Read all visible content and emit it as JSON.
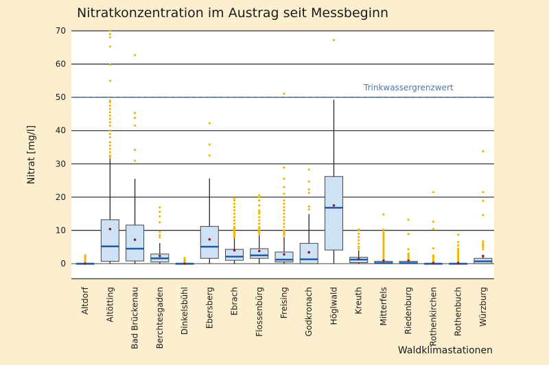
{
  "chart_data": {
    "type": "box",
    "title": "Nitratkonzentration im Austrag seit Messbeginn",
    "xlabel": "Waldklimastationen",
    "ylabel": "Nitrat [mg/l]",
    "ylim": [
      -4.5,
      70
    ],
    "yticks": [
      0,
      10,
      20,
      30,
      40,
      50,
      60,
      70
    ],
    "grid": true,
    "reference_line": {
      "value": 50,
      "label": "Trinkwassergrenzwert",
      "color": "#4a78b0"
    },
    "colors": {
      "box_fill": "#cfe2f5",
      "median": "#1f5aa0",
      "mean": "#8b1a2b",
      "outlier": "#f2b400"
    },
    "categories": [
      "Altdorf",
      "Altötting",
      "Bad Brückenau",
      "Berchtesgaden",
      "Dinkelsbühl",
      "Ebersberg",
      "Ebrach",
      "Flossenbürg",
      "Freising",
      "Godkronach",
      "Höglwald",
      "Kreuth",
      "Mitterfels",
      "Riedenburg",
      "Rothenkirchen",
      "Rothenbuch",
      "Würzburg"
    ],
    "boxes": [
      {
        "min": 0,
        "q1": 0,
        "median": 0,
        "q3": 0,
        "max": 0,
        "mean": 0,
        "outliers": [
          0.5,
          1,
          1.5,
          2,
          2.5
        ]
      },
      {
        "min": 0,
        "q1": 0.7,
        "median": 5.2,
        "q3": 13.2,
        "max": 31.6,
        "mean": 10.4,
        "outliers": [
          32,
          32.5,
          33.5,
          34.5,
          35.5,
          36.5,
          38,
          39,
          40,
          41.5,
          42.5,
          43.5,
          44.5,
          45.5,
          46.5,
          47.5,
          48.5,
          49,
          55,
          59.8,
          65.3,
          68,
          69,
          70
        ]
      },
      {
        "min": 0,
        "q1": 0.8,
        "median": 4.5,
        "q3": 11.6,
        "max": 25.5,
        "mean": 7.2,
        "outliers": [
          30.9,
          34.2,
          41.5,
          43.8,
          45.3,
          62.7
        ]
      },
      {
        "min": 0,
        "q1": 0.5,
        "median": 1.6,
        "q3": 2.9,
        "max": 6.2,
        "mean": 2.3,
        "outliers": [
          7.9,
          8.6,
          9.6,
          12.4,
          14.2,
          15.6,
          16.9
        ]
      },
      {
        "min": 0,
        "q1": 0,
        "median": 0,
        "q3": 0,
        "max": 0,
        "mean": 0,
        "outliers": [
          0.4,
          0.8,
          1.2,
          1.7
        ]
      },
      {
        "min": 0,
        "q1": 1.6,
        "median": 5.1,
        "q3": 11.2,
        "max": 25.6,
        "mean": 7.3,
        "outliers": [
          32.5,
          35.8,
          42.2
        ]
      },
      {
        "min": 0,
        "q1": 1.0,
        "median": 2.1,
        "q3": 4.3,
        "max": 7.7,
        "mean": 4.0,
        "outliers": [
          8,
          8.5,
          9,
          9.5,
          10,
          10.5,
          11,
          12,
          13,
          14,
          15,
          16,
          17,
          18,
          19,
          19.7
        ]
      },
      {
        "min": 0,
        "q1": 1.6,
        "median": 2.5,
        "q3": 4.5,
        "max": 8.6,
        "mean": 3.8,
        "outliers": [
          9,
          9.5,
          10,
          10.5,
          11,
          12,
          13,
          14,
          15,
          15.5,
          16,
          17.5,
          19,
          20,
          20.6
        ]
      },
      {
        "min": 0,
        "q1": 0.5,
        "median": 1.2,
        "q3": 3.5,
        "max": 8.0,
        "mean": 2.8,
        "outliers": [
          8.5,
          9,
          9.5,
          10,
          11,
          12,
          13,
          14,
          15,
          16,
          17,
          18,
          19,
          21,
          23,
          25.5,
          28.9,
          51.1
        ]
      },
      {
        "min": 0,
        "q1": 0,
        "median": 1.3,
        "q3": 6.1,
        "max": 14.9,
        "mean": 3.4,
        "outliers": [
          16.3,
          17.2,
          21.3,
          22.3,
          24.7,
          28.3
        ]
      },
      {
        "min": 0,
        "q1": 4.1,
        "median": 16.8,
        "q3": 26.2,
        "max": 49.3,
        "mean": 17.5,
        "outliers": [
          67.2
        ]
      },
      {
        "min": 0,
        "q1": 0.3,
        "median": 1.2,
        "q3": 1.9,
        "max": 4.0,
        "mean": 1.4,
        "outliers": [
          4.5,
          5.1,
          6,
          7,
          8,
          9,
          10,
          10.3
        ]
      },
      {
        "min": 0,
        "q1": 0,
        "median": 0.2,
        "q3": 0.7,
        "max": 0.7,
        "mean": 0.9,
        "outliers": [
          1,
          1.5,
          2,
          2.5,
          3,
          3.5,
          4,
          4.5,
          5,
          5.5,
          6,
          6.5,
          7,
          7.5,
          8,
          8.5,
          9,
          9.5,
          10.2,
          14.8
        ]
      },
      {
        "min": 0,
        "q1": 0,
        "median": 0.2,
        "q3": 0.7,
        "max": 0.7,
        "mean": 0.9,
        "outliers": [
          1.5,
          2,
          2.5,
          3,
          4.3,
          8.9,
          13.2
        ]
      },
      {
        "min": 0,
        "q1": 0,
        "median": 0,
        "q3": 0,
        "max": 0,
        "mean": 0.2,
        "outliers": [
          0.5,
          1,
          1.5,
          2,
          2.5,
          4.6,
          10.4,
          12.6,
          21.5
        ]
      },
      {
        "min": 0,
        "q1": 0,
        "median": 0,
        "q3": 0,
        "max": 0,
        "mean": 0.2,
        "outliers": [
          0.5,
          1,
          1.5,
          2,
          2.5,
          3,
          3.5,
          4,
          4.5,
          5.5,
          6.5,
          8.7
        ]
      },
      {
        "min": 0,
        "q1": 0,
        "median": 0.7,
        "q3": 1.6,
        "max": 2.3,
        "mean": 2.3,
        "outliers": [
          4.3,
          5,
          5.5,
          6,
          6.7,
          14.6,
          18.9,
          21.5,
          33.8
        ]
      }
    ]
  }
}
